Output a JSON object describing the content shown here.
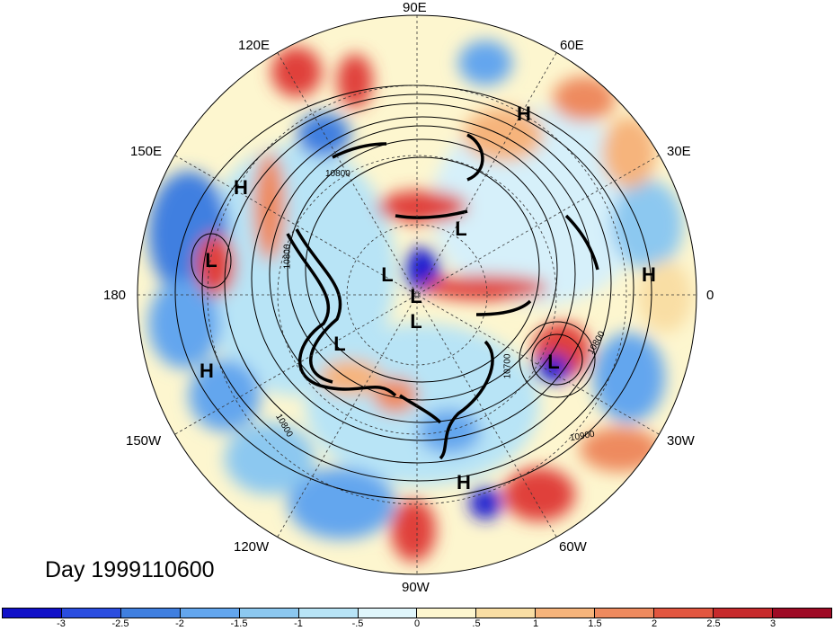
{
  "map": {
    "title": "Day 1999110600",
    "longitude_labels": {
      "e90": "90E",
      "e120": "120E",
      "e60": "60E",
      "e150": "150E",
      "e30": "30E",
      "w180": "180",
      "zero": "0",
      "w150": "150W",
      "w30": "30W",
      "w120": "120W",
      "w60": "60W",
      "w90": "90W"
    },
    "pressure_centers": [
      "H",
      "H",
      "H",
      "H",
      "H",
      "L",
      "L",
      "L",
      "L",
      "L",
      "L",
      "L"
    ],
    "contour_labels": [
      "10800",
      "10800",
      "10700",
      "10800",
      "10800",
      "10900",
      "10900",
      "10800",
      "10700"
    ],
    "colors": {
      "deep_blue": "#1f1fd0",
      "blue": "#3f7fe0",
      "light_blue": "#8cc8f0",
      "pale_blue": "#d6f0fa",
      "pale_yellow": "#fdf6cf",
      "tan": "#f6c897",
      "orange": "#ee8a5e",
      "red": "#e0403a",
      "dark_red": "#a01026"
    }
  },
  "colorbar": {
    "ticks": [
      "-3",
      "-2.5",
      "-2",
      "-1.5",
      "-1",
      "-.5",
      "0",
      ".5",
      "1",
      "1.5",
      "2",
      "2.5",
      "3"
    ],
    "colors": [
      "#1010c8",
      "#2a4de0",
      "#3f7fe0",
      "#63a6ee",
      "#8cc8f0",
      "#b8e4f6",
      "#e0f6fb",
      "#fdf6cf",
      "#f9dea4",
      "#f6b47b",
      "#ee8a5e",
      "#e2563f",
      "#c72a2c",
      "#9e0a25"
    ]
  }
}
